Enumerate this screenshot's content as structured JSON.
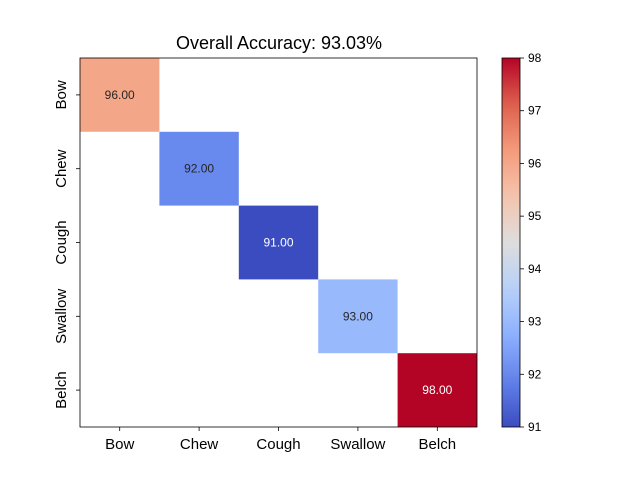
{
  "chart_data": {
    "type": "heatmap",
    "title": "Overall Accuracy: 93.03%",
    "xlabel": "",
    "ylabel": "",
    "x_categories": [
      "Bow",
      "Chew",
      "Cough",
      "Swallow",
      "Belch"
    ],
    "y_categories": [
      "Bow",
      "Chew",
      "Cough",
      "Swallow",
      "Belch"
    ],
    "cells": [
      {
        "row": 0,
        "col": 0,
        "value": 96.0,
        "label": "96.00"
      },
      {
        "row": 1,
        "col": 1,
        "value": 92.0,
        "label": "92.00"
      },
      {
        "row": 2,
        "col": 2,
        "value": 91.0,
        "label": "91.00"
      },
      {
        "row": 3,
        "col": 3,
        "value": 93.0,
        "label": "93.00"
      },
      {
        "row": 4,
        "col": 4,
        "value": 98.0,
        "label": "98.00"
      }
    ],
    "empty_cells": "blank",
    "colormap": "coolwarm",
    "colorbar": {
      "range": [
        91,
        98
      ],
      "ticks": [
        "91",
        "92",
        "93",
        "94",
        "95",
        "96",
        "97",
        "98"
      ],
      "placement": "right"
    },
    "grid": false,
    "legend": "none"
  }
}
